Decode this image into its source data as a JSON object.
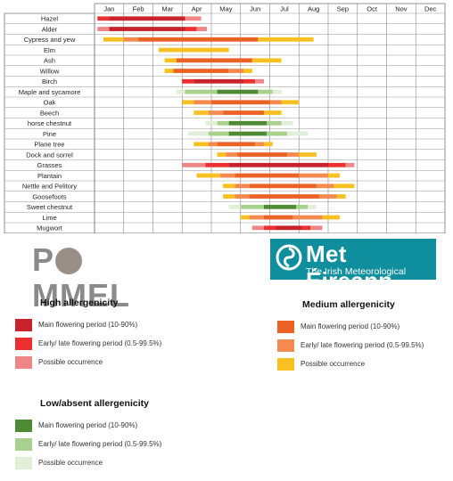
{
  "chart_data": {
    "type": "gantt",
    "months": [
      "Jan",
      "Feb",
      "Mar",
      "Apr",
      "May",
      "Jun",
      "Jul",
      "Aug",
      "Sep",
      "Oct",
      "Nov",
      "Dec"
    ],
    "rows": [
      {
        "label": "Hazel",
        "segments": [
          {
            "from": 0.1,
            "to": 0.5,
            "class": "high-early"
          },
          {
            "from": 0.5,
            "to": 3.1,
            "class": "high-main"
          },
          {
            "from": 3.1,
            "to": 3.65,
            "class": "high-possible"
          }
        ]
      },
      {
        "label": "Alder",
        "segments": [
          {
            "from": 0.1,
            "to": 0.5,
            "class": "high-possible"
          },
          {
            "from": 0.5,
            "to": 3.1,
            "class": "high-main"
          },
          {
            "from": 3.1,
            "to": 3.5,
            "class": "high-early"
          },
          {
            "from": 3.5,
            "to": 3.85,
            "class": "high-possible"
          }
        ]
      },
      {
        "label": "Cypress and yew",
        "segments": [
          {
            "from": 0.3,
            "to": 1.0,
            "class": "med-possible"
          },
          {
            "from": 1.0,
            "to": 1.5,
            "class": "med-early"
          },
          {
            "from": 1.5,
            "to": 5.6,
            "class": "med-main"
          },
          {
            "from": 5.6,
            "to": 7.5,
            "class": "med-possible"
          }
        ]
      },
      {
        "label": "Elm",
        "segments": [
          {
            "from": 2.2,
            "to": 4.6,
            "class": "med-possible"
          }
        ]
      },
      {
        "label": "Ash",
        "segments": [
          {
            "from": 2.4,
            "to": 2.8,
            "class": "med-possible"
          },
          {
            "from": 2.8,
            "to": 5.4,
            "class": "med-main"
          },
          {
            "from": 5.4,
            "to": 6.4,
            "class": "med-possible"
          }
        ]
      },
      {
        "label": "Willow",
        "segments": [
          {
            "from": 2.4,
            "to": 2.7,
            "class": "med-possible"
          },
          {
            "from": 2.7,
            "to": 4.6,
            "class": "med-main"
          },
          {
            "from": 4.6,
            "to": 5.1,
            "class": "med-early"
          },
          {
            "from": 5.1,
            "to": 5.4,
            "class": "med-possible"
          }
        ]
      },
      {
        "label": "Birch",
        "segments": [
          {
            "from": 3.0,
            "to": 3.4,
            "class": "high-early"
          },
          {
            "from": 3.4,
            "to": 5.1,
            "class": "high-main"
          },
          {
            "from": 5.1,
            "to": 5.5,
            "class": "high-early"
          },
          {
            "from": 5.5,
            "to": 5.8,
            "class": "high-possible"
          }
        ]
      },
      {
        "label": "Maple and sycamore",
        "segments": [
          {
            "from": 2.8,
            "to": 3.1,
            "class": "low-possible"
          },
          {
            "from": 3.1,
            "to": 4.2,
            "class": "low-early"
          },
          {
            "from": 4.2,
            "to": 5.6,
            "class": "low-main"
          },
          {
            "from": 5.6,
            "to": 6.1,
            "class": "low-early"
          },
          {
            "from": 6.1,
            "to": 6.4,
            "class": "low-possible"
          }
        ]
      },
      {
        "label": "Oak",
        "segments": [
          {
            "from": 3.0,
            "to": 3.4,
            "class": "med-possible"
          },
          {
            "from": 3.4,
            "to": 4.0,
            "class": "med-early"
          },
          {
            "from": 4.0,
            "to": 6.0,
            "class": "med-main"
          },
          {
            "from": 6.0,
            "to": 6.4,
            "class": "med-early"
          },
          {
            "from": 6.4,
            "to": 7.0,
            "class": "med-possible"
          }
        ]
      },
      {
        "label": "Beech",
        "segments": [
          {
            "from": 3.4,
            "to": 3.9,
            "class": "med-possible"
          },
          {
            "from": 3.9,
            "to": 4.4,
            "class": "med-early"
          },
          {
            "from": 4.4,
            "to": 5.8,
            "class": "med-main"
          },
          {
            "from": 5.8,
            "to": 6.4,
            "class": "med-possible"
          }
        ]
      },
      {
        "label": "horse chestnut",
        "segments": [
          {
            "from": 3.8,
            "to": 4.2,
            "class": "low-possible"
          },
          {
            "from": 4.2,
            "to": 4.6,
            "class": "low-early"
          },
          {
            "from": 4.6,
            "to": 5.9,
            "class": "low-main"
          },
          {
            "from": 5.9,
            "to": 6.4,
            "class": "low-early"
          },
          {
            "from": 6.4,
            "to": 6.8,
            "class": "low-possible"
          }
        ]
      },
      {
        "label": "Pine",
        "segments": [
          {
            "from": 3.2,
            "to": 3.9,
            "class": "low-possible"
          },
          {
            "from": 3.9,
            "to": 4.6,
            "class": "low-early"
          },
          {
            "from": 4.6,
            "to": 5.9,
            "class": "low-main"
          },
          {
            "from": 5.9,
            "to": 6.6,
            "class": "low-early"
          },
          {
            "from": 6.6,
            "to": 7.3,
            "class": "low-possible"
          }
        ]
      },
      {
        "label": "Plane tree",
        "segments": [
          {
            "from": 3.4,
            "to": 3.9,
            "class": "med-possible"
          },
          {
            "from": 3.9,
            "to": 4.2,
            "class": "med-early"
          },
          {
            "from": 4.2,
            "to": 5.5,
            "class": "med-main"
          },
          {
            "from": 5.5,
            "to": 5.8,
            "class": "med-early"
          },
          {
            "from": 5.8,
            "to": 6.1,
            "class": "med-possible"
          }
        ]
      },
      {
        "label": "Dock and sorrel",
        "segments": [
          {
            "from": 4.2,
            "to": 4.5,
            "class": "med-possible"
          },
          {
            "from": 4.5,
            "to": 4.9,
            "class": "med-early"
          },
          {
            "from": 4.9,
            "to": 6.6,
            "class": "med-main"
          },
          {
            "from": 6.6,
            "to": 7.0,
            "class": "med-early"
          },
          {
            "from": 7.0,
            "to": 7.6,
            "class": "med-possible"
          }
        ]
      },
      {
        "label": "Grasses",
        "segments": [
          {
            "from": 3.0,
            "to": 3.8,
            "class": "high-possible"
          },
          {
            "from": 3.8,
            "to": 4.6,
            "class": "high-early"
          },
          {
            "from": 4.6,
            "to": 8.0,
            "class": "high-main"
          },
          {
            "from": 8.0,
            "to": 8.6,
            "class": "high-early"
          },
          {
            "from": 8.6,
            "to": 8.9,
            "class": "high-possible"
          }
        ]
      },
      {
        "label": "Plantain",
        "segments": [
          {
            "from": 3.5,
            "to": 4.3,
            "class": "med-possible"
          },
          {
            "from": 4.3,
            "to": 4.8,
            "class": "med-early"
          },
          {
            "from": 4.8,
            "to": 7.0,
            "class": "med-main"
          },
          {
            "from": 7.0,
            "to": 8.0,
            "class": "med-early"
          },
          {
            "from": 8.0,
            "to": 8.4,
            "class": "med-possible"
          }
        ]
      },
      {
        "label": "Nettle and Pelitory",
        "segments": [
          {
            "from": 4.4,
            "to": 4.8,
            "class": "med-possible"
          },
          {
            "from": 4.8,
            "to": 5.3,
            "class": "med-early"
          },
          {
            "from": 5.3,
            "to": 7.6,
            "class": "med-main"
          },
          {
            "from": 7.6,
            "to": 8.2,
            "class": "med-early"
          },
          {
            "from": 8.2,
            "to": 8.9,
            "class": "med-possible"
          }
        ]
      },
      {
        "label": "Goosefoots",
        "segments": [
          {
            "from": 4.4,
            "to": 4.8,
            "class": "med-possible"
          },
          {
            "from": 4.8,
            "to": 5.3,
            "class": "med-early"
          },
          {
            "from": 5.3,
            "to": 7.7,
            "class": "med-main"
          },
          {
            "from": 7.7,
            "to": 8.3,
            "class": "med-early"
          },
          {
            "from": 8.3,
            "to": 8.6,
            "class": "med-possible"
          }
        ]
      },
      {
        "label": "Sweet chestnut",
        "segments": [
          {
            "from": 4.6,
            "to": 5.0,
            "class": "low-possible"
          },
          {
            "from": 5.0,
            "to": 5.8,
            "class": "low-early"
          },
          {
            "from": 5.8,
            "to": 6.9,
            "class": "low-main"
          },
          {
            "from": 6.9,
            "to": 7.3,
            "class": "low-early"
          },
          {
            "from": 7.3,
            "to": 7.6,
            "class": "low-possible"
          }
        ]
      },
      {
        "label": "Lime",
        "segments": [
          {
            "from": 5.0,
            "to": 5.3,
            "class": "med-possible"
          },
          {
            "from": 5.3,
            "to": 5.8,
            "class": "med-early"
          },
          {
            "from": 5.8,
            "to": 6.8,
            "class": "med-main"
          },
          {
            "from": 6.8,
            "to": 7.8,
            "class": "med-early"
          },
          {
            "from": 7.8,
            "to": 8.4,
            "class": "med-possible"
          }
        ]
      },
      {
        "label": "Mugwort",
        "segments": [
          {
            "from": 5.4,
            "to": 5.8,
            "class": "high-possible"
          },
          {
            "from": 5.8,
            "to": 6.2,
            "class": "high-early"
          },
          {
            "from": 6.2,
            "to": 7.1,
            "class": "high-main"
          },
          {
            "from": 7.1,
            "to": 7.4,
            "class": "high-early"
          },
          {
            "from": 7.4,
            "to": 7.8,
            "class": "high-possible"
          }
        ]
      }
    ],
    "colors": {
      "high-main": "#c8232c",
      "high-early": "#ed2f2f",
      "high-possible": "#ef8585",
      "med-main": "#ea6324",
      "med-early": "#f48a4f",
      "med-possible": "#f9c021",
      "low-main": "#4f8a35",
      "low-early": "#a9d18e",
      "low-possible": "#e1efd9"
    },
    "legend": [
      {
        "title": "High allergenicity",
        "items": [
          {
            "class": "high-main",
            "label": "Main flowering period (10-90%)"
          },
          {
            "class": "high-early",
            "label": "Early/ late flowering period (0.5-99.5%)"
          },
          {
            "class": "high-possible",
            "label": "Possible occurrence"
          }
        ]
      },
      {
        "title": "Medium allergenicity",
        "items": [
          {
            "class": "med-main",
            "label": "Main flowering period (10-90%)"
          },
          {
            "class": "med-early",
            "label": "Early/ late flowering period (0.5-99.5%)"
          },
          {
            "class": "med-possible",
            "label": "Possible occurrence"
          }
        ]
      },
      {
        "title": "Low/absent allergenicity",
        "items": [
          {
            "class": "low-main",
            "label": "Main flowering period (10-90%)"
          },
          {
            "class": "low-early",
            "label": "Early/ late flowering period (0.5-99.5%)"
          },
          {
            "class": "low-possible",
            "label": "Possible occurrence"
          }
        ]
      }
    ]
  },
  "logos": {
    "pommel": {
      "pre": "P",
      "post": "MMEL"
    },
    "met_eireann": {
      "name": "Met Éireann",
      "tagline": "The Irish Meteorological Service",
      "bg": "#0f8e9e"
    }
  }
}
